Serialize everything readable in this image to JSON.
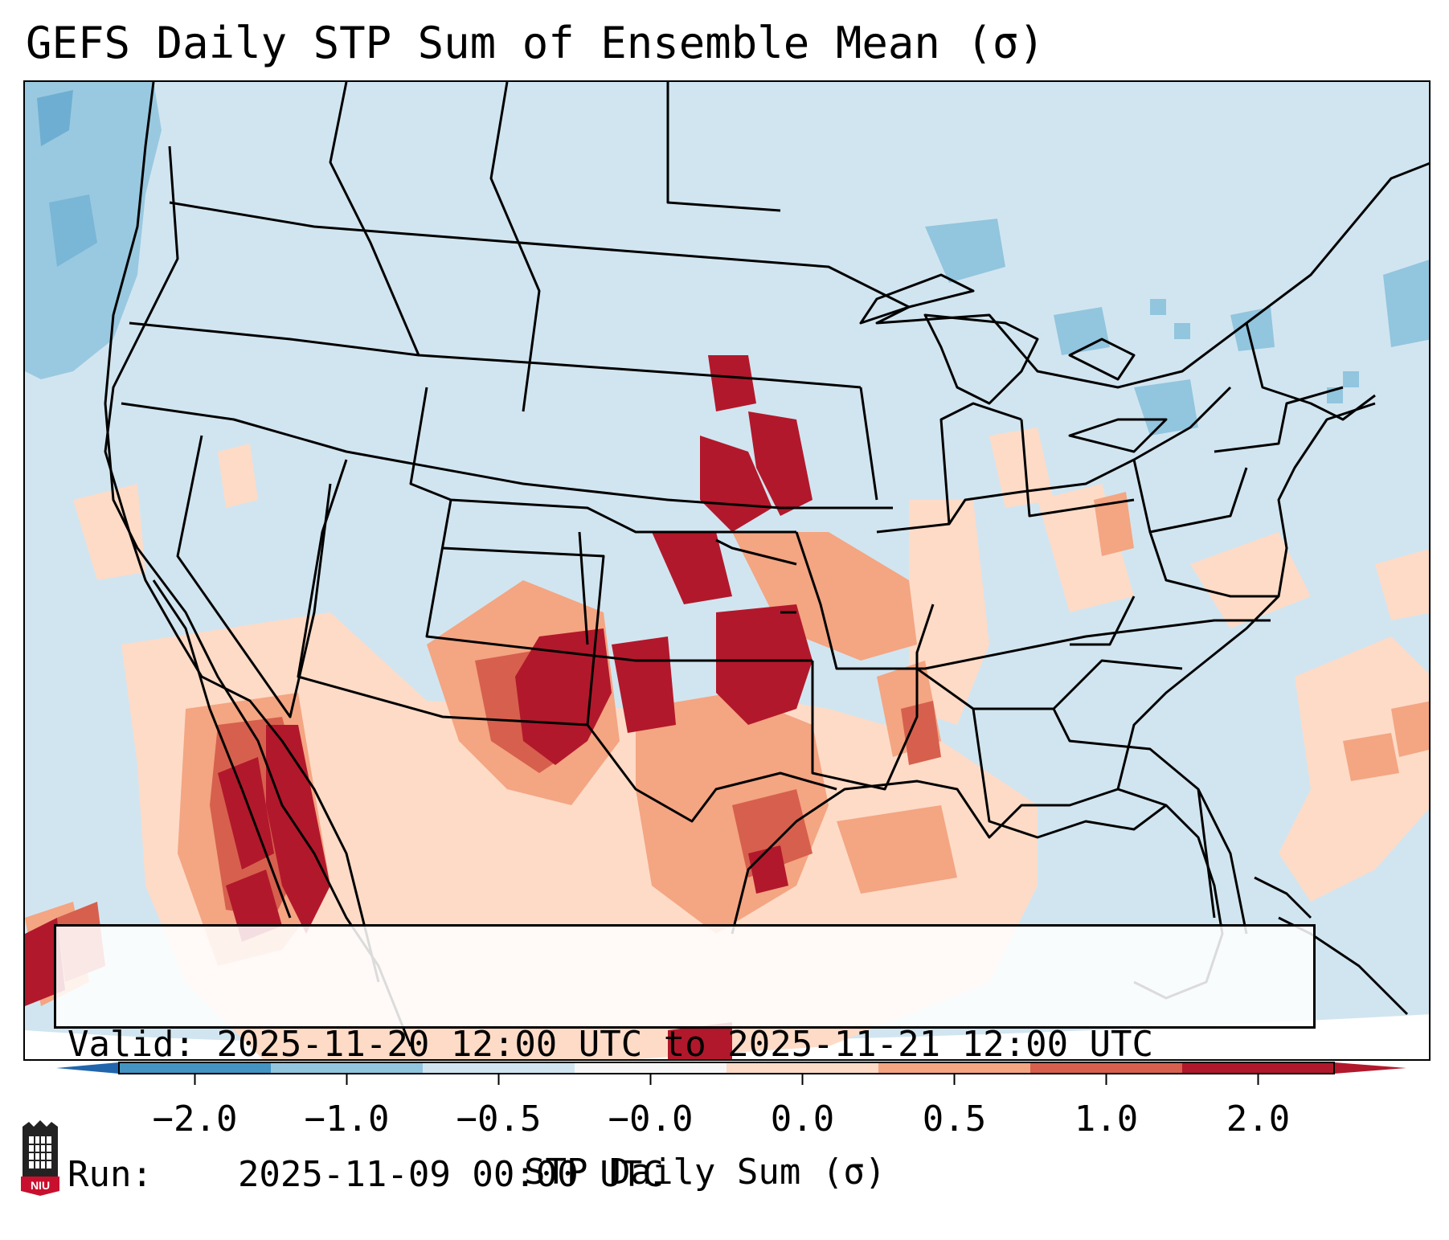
{
  "title": "GEFS Daily STP Sum of Ensemble Mean (σ)",
  "info": {
    "valid_label": "Valid:",
    "valid_value": "2025-11-20 12:00 UTC to 2025-11-21 12:00 UTC",
    "run_label": "Run:",
    "run_value": "2025-11-09 00:00 UTC"
  },
  "colorbar": {
    "label": "STP Daily Sum (σ)",
    "ticks": [
      "−2.0",
      "−1.0",
      "−0.5",
      "−0.0",
      "0.0",
      "0.5",
      "1.0",
      "2.0"
    ],
    "colors": [
      "#4393c3",
      "#92c5de",
      "#d1e5f0",
      "#f7f7f7",
      "#fddbc7",
      "#f4a582",
      "#d6604d",
      "#b2182b"
    ],
    "extend_low_color": "#2166ac",
    "extend_high_color": "#b2182b"
  },
  "logo": {
    "text": "NIU",
    "icon": "niu-building-logo-icon"
  }
}
